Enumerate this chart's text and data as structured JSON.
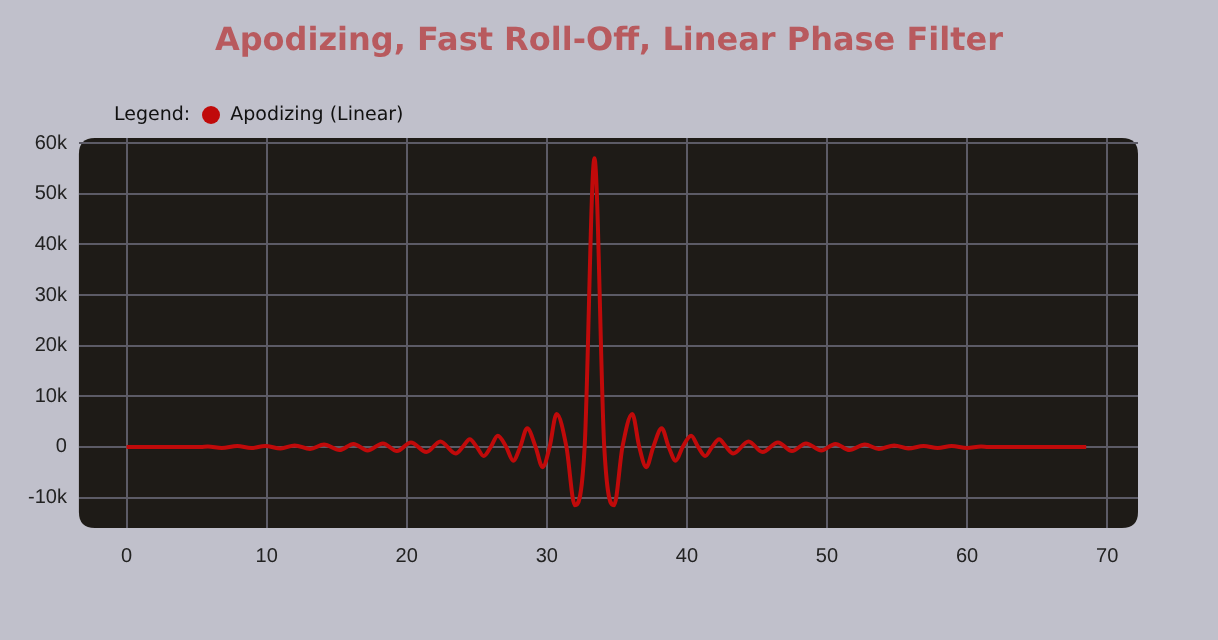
{
  "chart_data": {
    "type": "line",
    "title": "Apodizing, Fast Roll-Off, Linear Phase Filter",
    "legend_title": "Legend:",
    "legend": "top left",
    "grid": true,
    "marker": "none",
    "line_style": "solid",
    "x": [
      0,
      5.3,
      5.8,
      6.8,
      7.9,
      8.9,
      9.9,
      11.0,
      12.0,
      13.1,
      14.1,
      15.2,
      16.2,
      17.2,
      18.3,
      19.3,
      20.3,
      21.4,
      22.4,
      23.5,
      24.0,
      24.5,
      25.0,
      25.5,
      26.0,
      26.5,
      27.1,
      27.6,
      28.1,
      28.6,
      29.2,
      29.7,
      30.2,
      30.7,
      31.4,
      32.0,
      32.7,
      33.4,
      34.1,
      34.8,
      35.4,
      36.1,
      36.6,
      37.1,
      37.6,
      38.2,
      38.7,
      39.2,
      39.7,
      40.3,
      40.8,
      41.3,
      41.8,
      42.3,
      42.8,
      43.3,
      44.4,
      45.4,
      46.5,
      47.5,
      48.5,
      49.6,
      50.6,
      51.6,
      52.7,
      53.7,
      54.8,
      55.8,
      56.9,
      57.9,
      58.9,
      60.0,
      61.0,
      61.5,
      68.5
    ],
    "series": [
      {
        "name": "Apodizing (Linear)",
        "color": "#c00a0a",
        "values": [
          0,
          0,
          100,
          -200,
          200,
          -200,
          200,
          -300,
          300,
          -400,
          500,
          -600,
          600,
          -700,
          700,
          -800,
          900,
          -1000,
          1100,
          -1300,
          0,
          1500,
          0,
          -1800,
          0,
          2200,
          0,
          -2700,
          0,
          3700,
          0,
          -4000,
          0,
          6500,
          0,
          -11500,
          0,
          57000,
          0,
          -11500,
          0,
          6500,
          0,
          -4000,
          0,
          3700,
          0,
          -2700,
          0,
          2200,
          0,
          -1800,
          0,
          1500,
          0,
          -1300,
          1100,
          -1000,
          900,
          -800,
          700,
          -700,
          600,
          -600,
          500,
          -400,
          300,
          -300,
          200,
          -200,
          200,
          -200,
          100,
          0,
          0
        ]
      }
    ],
    "xlim": [
      -3.4,
      72.2
    ],
    "xticks": [
      0,
      10,
      20,
      30,
      40,
      50,
      60,
      70
    ],
    "ylim": [
      -16000,
      61000
    ],
    "yticks": [
      {
        "value": -10000,
        "label": "-10k"
      },
      {
        "value": 0,
        "label": "0"
      },
      {
        "value": 10000,
        "label": "10k"
      },
      {
        "value": 20000,
        "label": "20k"
      },
      {
        "value": 30000,
        "label": "30k"
      },
      {
        "value": 40000,
        "label": "40k"
      },
      {
        "value": 50000,
        "label": "50k"
      },
      {
        "value": 60000,
        "label": "60k"
      }
    ]
  }
}
